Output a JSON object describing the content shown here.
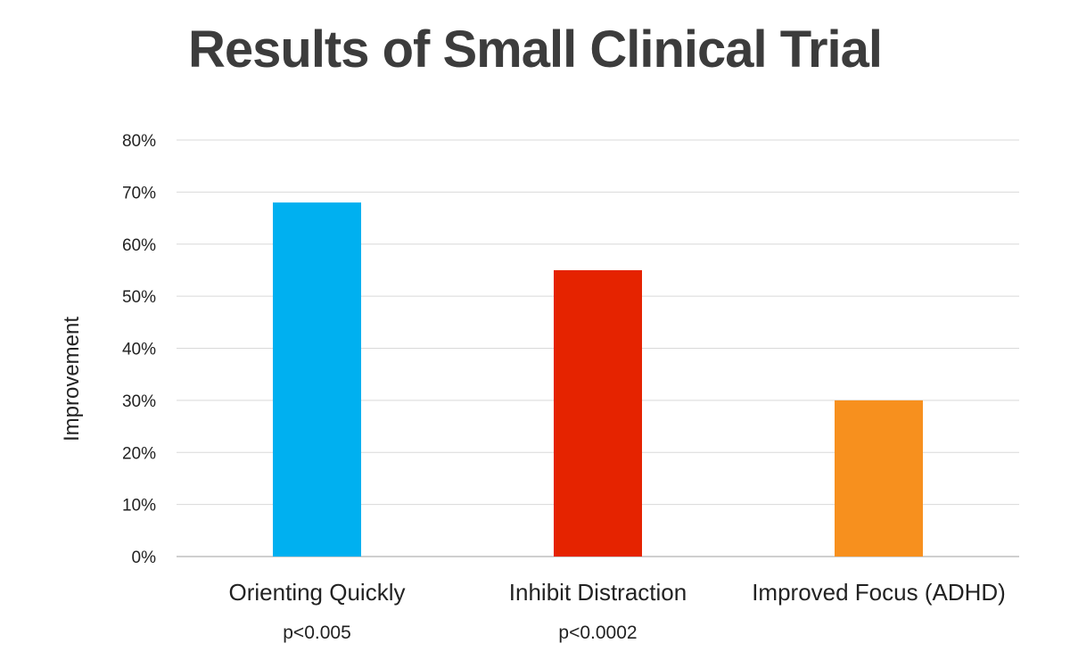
{
  "chart_data": {
    "type": "bar",
    "title": "Results of Small Clinical Trial",
    "ylabel": "Improvement",
    "xlabel": "",
    "categories": [
      "Orienting Quickly",
      "Inhibit Distraction",
      "Improved Focus (ADHD)"
    ],
    "values": [
      0.68,
      0.55,
      0.3
    ],
    "annotations": [
      "p<0.005",
      "p<0.0002",
      ""
    ],
    "bar_colors": [
      "#00B0F0",
      "#E52300",
      "#F7901E"
    ],
    "ylim": [
      0,
      0.8
    ],
    "yticks": [
      0,
      0.1,
      0.2,
      0.3,
      0.4,
      0.5,
      0.6,
      0.7,
      0.8
    ],
    "ytick_labels": [
      "0%",
      "10%",
      "20%",
      "30%",
      "40%",
      "50%",
      "60%",
      "70%",
      "80%"
    ],
    "grid": true,
    "legend": "none"
  }
}
